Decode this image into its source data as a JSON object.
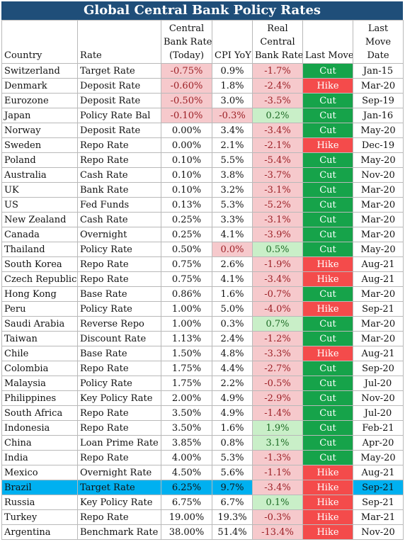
{
  "title": "Global Central Bank Policy Rates",
  "headers": {
    "country": "Country",
    "rate": "Rate",
    "cb_rate": [
      "Central",
      "Bank Rate",
      "(Today)"
    ],
    "cpi": "CPI YoY",
    "real": [
      "Real",
      "Central",
      "Bank Rate"
    ],
    "move": "Last Move",
    "date": [
      "Last",
      "Move",
      "Date"
    ]
  },
  "colors": {
    "title_bg": "#1f4e79",
    "negative_bg": "#f6c9cc",
    "positive_bg": "#c9efc8",
    "cut_bg": "#16a34a",
    "hike_bg": "#f44b4b",
    "highlight_row_bg": "#00b0f0"
  },
  "rows": [
    {
      "country": "Switzerland",
      "rate": "Target Rate",
      "cb": "-0.75%",
      "cpi": "0.9%",
      "real": "-1.7%",
      "move": "Cut",
      "date": "Jan-15",
      "cb_tone": "neg",
      "cpi_tone": "",
      "real_tone": "neg"
    },
    {
      "country": "Denmark",
      "rate": "Deposit Rate",
      "cb": "-0.60%",
      "cpi": "1.8%",
      "real": "-2.4%",
      "move": "Hike",
      "date": "Mar-20",
      "cb_tone": "neg",
      "cpi_tone": "",
      "real_tone": "neg"
    },
    {
      "country": "Eurozone",
      "rate": "Deposit Rate",
      "cb": "-0.50%",
      "cpi": "3.0%",
      "real": "-3.5%",
      "move": "Cut",
      "date": "Sep-19",
      "cb_tone": "neg",
      "cpi_tone": "",
      "real_tone": "neg"
    },
    {
      "country": "Japan",
      "rate": "Policy Rate Bal",
      "cb": "-0.10%",
      "cpi": "-0.3%",
      "real": "0.2%",
      "move": "Cut",
      "date": "Jan-16",
      "cb_tone": "neg",
      "cpi_tone": "neg",
      "real_tone": "pos"
    },
    {
      "country": "Norway",
      "rate": "Deposit Rate",
      "cb": "0.00%",
      "cpi": "3.4%",
      "real": "-3.4%",
      "move": "Cut",
      "date": "May-20",
      "cb_tone": "",
      "cpi_tone": "",
      "real_tone": "neg"
    },
    {
      "country": "Sweden",
      "rate": "Repo Rate",
      "cb": "0.00%",
      "cpi": "2.1%",
      "real": "-2.1%",
      "move": "Hike",
      "date": "Dec-19",
      "cb_tone": "",
      "cpi_tone": "",
      "real_tone": "neg"
    },
    {
      "country": "Poland",
      "rate": "Repo Rate",
      "cb": "0.10%",
      "cpi": "5.5%",
      "real": "-5.4%",
      "move": "Cut",
      "date": "May-20",
      "cb_tone": "",
      "cpi_tone": "",
      "real_tone": "neg"
    },
    {
      "country": "Australia",
      "rate": "Cash Rate",
      "cb": "0.10%",
      "cpi": "3.8%",
      "real": "-3.7%",
      "move": "Cut",
      "date": "Nov-20",
      "cb_tone": "",
      "cpi_tone": "",
      "real_tone": "neg"
    },
    {
      "country": "UK",
      "rate": "Bank Rate",
      "cb": "0.10%",
      "cpi": "3.2%",
      "real": "-3.1%",
      "move": "Cut",
      "date": "Mar-20",
      "cb_tone": "",
      "cpi_tone": "",
      "real_tone": "neg"
    },
    {
      "country": "US",
      "rate": "Fed Funds",
      "cb": "0.13%",
      "cpi": "5.3%",
      "real": "-5.2%",
      "move": "Cut",
      "date": "Mar-20",
      "cb_tone": "",
      "cpi_tone": "",
      "real_tone": "neg"
    },
    {
      "country": "New Zealand",
      "rate": "Cash Rate",
      "cb": "0.25%",
      "cpi": "3.3%",
      "real": "-3.1%",
      "move": "Cut",
      "date": "Mar-20",
      "cb_tone": "",
      "cpi_tone": "",
      "real_tone": "neg"
    },
    {
      "country": "Canada",
      "rate": "Overnight",
      "cb": "0.25%",
      "cpi": "4.1%",
      "real": "-3.9%",
      "move": "Cut",
      "date": "Mar-20",
      "cb_tone": "",
      "cpi_tone": "",
      "real_tone": "neg"
    },
    {
      "country": "Thailand",
      "rate": "Policy Rate",
      "cb": "0.50%",
      "cpi": "0.0%",
      "real": "0.5%",
      "move": "Cut",
      "date": "May-20",
      "cb_tone": "",
      "cpi_tone": "neg",
      "real_tone": "pos"
    },
    {
      "country": "South Korea",
      "rate": "Repo Rate",
      "cb": "0.75%",
      "cpi": "2.6%",
      "real": "-1.9%",
      "move": "Hike",
      "date": "Aug-21",
      "cb_tone": "",
      "cpi_tone": "",
      "real_tone": "neg"
    },
    {
      "country": "Czech Republic",
      "rate": "Repo Rate",
      "cb": "0.75%",
      "cpi": "4.1%",
      "real": "-3.4%",
      "move": "Hike",
      "date": "Aug-21",
      "cb_tone": "",
      "cpi_tone": "",
      "real_tone": "neg"
    },
    {
      "country": "Hong Kong",
      "rate": "Base Rate",
      "cb": "0.86%",
      "cpi": "1.6%",
      "real": "-0.7%",
      "move": "Cut",
      "date": "Mar-20",
      "cb_tone": "",
      "cpi_tone": "",
      "real_tone": "neg"
    },
    {
      "country": "Peru",
      "rate": "Policy Rate",
      "cb": "1.00%",
      "cpi": "5.0%",
      "real": "-4.0%",
      "move": "Hike",
      "date": "Sep-21",
      "cb_tone": "",
      "cpi_tone": "",
      "real_tone": "neg"
    },
    {
      "country": "Saudi Arabia",
      "rate": "Reverse Repo",
      "cb": "1.00%",
      "cpi": "0.3%",
      "real": "0.7%",
      "move": "Cut",
      "date": "Mar-20",
      "cb_tone": "",
      "cpi_tone": "",
      "real_tone": "pos"
    },
    {
      "country": "Taiwan",
      "rate": "Discount Rate",
      "cb": "1.13%",
      "cpi": "2.4%",
      "real": "-1.2%",
      "move": "Cut",
      "date": "Mar-20",
      "cb_tone": "",
      "cpi_tone": "",
      "real_tone": "neg"
    },
    {
      "country": "Chile",
      "rate": "Base Rate",
      "cb": "1.50%",
      "cpi": "4.8%",
      "real": "-3.3%",
      "move": "Hike",
      "date": "Aug-21",
      "cb_tone": "",
      "cpi_tone": "",
      "real_tone": "neg"
    },
    {
      "country": "Colombia",
      "rate": "Repo Rate",
      "cb": "1.75%",
      "cpi": "4.4%",
      "real": "-2.7%",
      "move": "Cut",
      "date": "Sep-20",
      "cb_tone": "",
      "cpi_tone": "",
      "real_tone": "neg"
    },
    {
      "country": "Malaysia",
      "rate": "Policy Rate",
      "cb": "1.75%",
      "cpi": "2.2%",
      "real": "-0.5%",
      "move": "Cut",
      "date": "Jul-20",
      "cb_tone": "",
      "cpi_tone": "",
      "real_tone": "neg"
    },
    {
      "country": "Philippines",
      "rate": "Key Policy Rate",
      "cb": "2.00%",
      "cpi": "4.9%",
      "real": "-2.9%",
      "move": "Cut",
      "date": "Nov-20",
      "cb_tone": "",
      "cpi_tone": "",
      "real_tone": "neg"
    },
    {
      "country": "South Africa",
      "rate": "Repo Rate",
      "cb": "3.50%",
      "cpi": "4.9%",
      "real": "-1.4%",
      "move": "Cut",
      "date": "Jul-20",
      "cb_tone": "",
      "cpi_tone": "",
      "real_tone": "neg"
    },
    {
      "country": "Indonesia",
      "rate": "Repo Rate",
      "cb": "3.50%",
      "cpi": "1.6%",
      "real": "1.9%",
      "move": "Cut",
      "date": "Feb-21",
      "cb_tone": "",
      "cpi_tone": "",
      "real_tone": "pos"
    },
    {
      "country": "China",
      "rate": "Loan Prime Rate",
      "cb": "3.85%",
      "cpi": "0.8%",
      "real": "3.1%",
      "move": "Cut",
      "date": "Apr-20",
      "cb_tone": "",
      "cpi_tone": "",
      "real_tone": "pos"
    },
    {
      "country": "India",
      "rate": "Repo Rate",
      "cb": "4.00%",
      "cpi": "5.3%",
      "real": "-1.3%",
      "move": "Cut",
      "date": "May-20",
      "cb_tone": "",
      "cpi_tone": "",
      "real_tone": "neg"
    },
    {
      "country": "Mexico",
      "rate": "Overnight Rate",
      "cb": "4.50%",
      "cpi": "5.6%",
      "real": "-1.1%",
      "move": "Hike",
      "date": "Aug-21",
      "cb_tone": "",
      "cpi_tone": "",
      "real_tone": "neg"
    },
    {
      "country": "Brazil",
      "rate": "Target Rate",
      "cb": "6.25%",
      "cpi": "9.7%",
      "real": "-3.4%",
      "move": "Hike",
      "date": "Sep-21",
      "cb_tone": "",
      "cpi_tone": "",
      "real_tone": "neg",
      "highlight": true
    },
    {
      "country": "Russia",
      "rate": "Key Policy Rate",
      "cb": "6.75%",
      "cpi": "6.7%",
      "real": "0.1%",
      "move": "Hike",
      "date": "Sep-21",
      "cb_tone": "",
      "cpi_tone": "",
      "real_tone": "pos"
    },
    {
      "country": "Turkey",
      "rate": "Repo Rate",
      "cb": "19.00%",
      "cpi": "19.3%",
      "real": "-0.3%",
      "move": "Hike",
      "date": "Mar-21",
      "cb_tone": "",
      "cpi_tone": "",
      "real_tone": "neg"
    },
    {
      "country": "Argentina",
      "rate": "Benchmark Rate",
      "cb": "38.00%",
      "cpi": "51.4%",
      "real": "-13.4%",
      "move": "Hike",
      "date": "Nov-20",
      "cb_tone": "",
      "cpi_tone": "",
      "real_tone": "neg"
    }
  ]
}
